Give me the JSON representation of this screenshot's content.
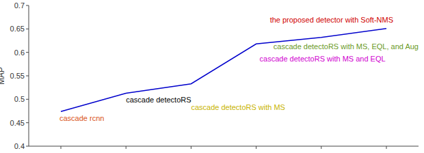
{
  "chart_data": {
    "type": "line",
    "ylabel": "MAP",
    "categories": [
      "cascade rcnn",
      "cascade detectoRS",
      "cascade detectoRS with MS",
      "cascade detectoRS with MS and EQL",
      "cascade detectoRS with MS, EQL, and Aug",
      "the proposed detector with Soft-NMS"
    ],
    "values": [
      0.474,
      0.513,
      0.533,
      0.618,
      0.632,
      0.651
    ],
    "color": "#0000cc",
    "colors": [
      "#d95319",
      "#000000",
      "#c8b400",
      "#d000d0",
      "#6a9a1f",
      "#d00000"
    ],
    "ylim": [
      0.4,
      0.7
    ],
    "yticks": [
      0.4,
      0.45,
      0.5,
      0.55,
      0.6,
      0.65,
      0.7
    ],
    "grid": false,
    "tick_labels": "y"
  }
}
